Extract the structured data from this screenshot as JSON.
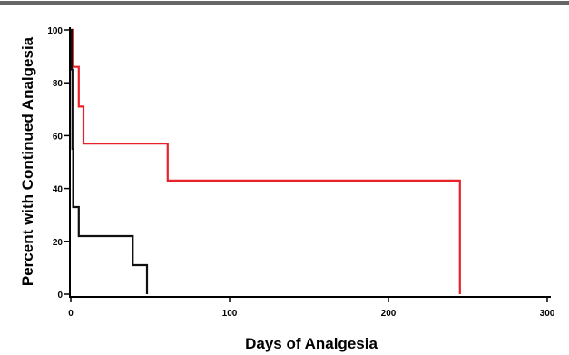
{
  "chart_data": {
    "type": "line",
    "line_style": "step",
    "xlabel": "Days of Analgesia",
    "ylabel": "Percent with Continued Analgesia",
    "xlim": [
      0,
      300
    ],
    "ylim": [
      0,
      100
    ],
    "x_ticks": [
      "0",
      "100",
      "200",
      "300"
    ],
    "y_ticks": [
      "0",
      "20",
      "40",
      "60",
      "80",
      "100"
    ],
    "grid": false,
    "legend": "none",
    "series": [
      {
        "color": "#e8222a",
        "x": [
          0,
          1,
          1,
          5,
          5,
          8,
          8,
          61,
          61,
          245,
          245
        ],
        "y": [
          100,
          100,
          86,
          86,
          71,
          71,
          57,
          57,
          43,
          43,
          0
        ]
      },
      {
        "color": "#111111",
        "x": [
          0,
          0.5,
          0.5,
          1,
          1,
          1.5,
          1.5,
          2,
          2,
          5,
          5,
          39,
          39,
          48,
          48
        ],
        "y": [
          100,
          100,
          85,
          85,
          55,
          55,
          33,
          33,
          33,
          33,
          22,
          22,
          11,
          11,
          0
        ]
      }
    ]
  }
}
